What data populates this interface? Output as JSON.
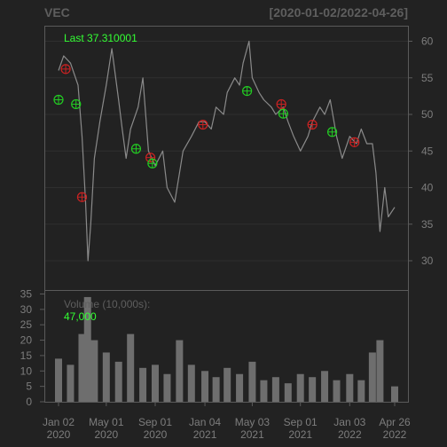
{
  "chart_data": [
    {
      "type": "line",
      "title": "VEC",
      "date_range": "[2020-01-02/2022-04-26]",
      "annotation": "Last 37.310001",
      "last_value": 37.310001,
      "ylim": [
        26,
        62
      ],
      "y_ticks": [
        "30",
        "35",
        "40",
        "45",
        "50",
        "55",
        "60"
      ],
      "x_ticks": [
        {
          "line1": "Jan 02",
          "line2": "2020"
        },
        {
          "line1": "May 01",
          "line2": "2020"
        },
        {
          "line1": "Sep 01",
          "line2": "2020"
        },
        {
          "line1": "Jan 04",
          "line2": "2021"
        },
        {
          "line1": "May 03",
          "line2": "2021"
        },
        {
          "line1": "Sep 01",
          "line2": "2021"
        },
        {
          "line1": "Jan 03",
          "line2": "2022"
        },
        {
          "line1": "Apr 26",
          "line2": "2022"
        }
      ],
      "grid": true,
      "colors": {
        "background": "#222222",
        "price": "#8a8a8a",
        "buy": "#22cc22",
        "sell": "#cc2222",
        "text": "#33ff33"
      },
      "series": [
        {
          "x": [
            "2020-01-02",
            "2020-01-15",
            "2020-02-01",
            "2020-02-20",
            "2020-03-01",
            "2020-03-10",
            "2020-03-16",
            "2020-03-23",
            "2020-04-01",
            "2020-04-15",
            "2020-05-01",
            "2020-05-15",
            "2020-06-01",
            "2020-06-10",
            "2020-06-20",
            "2020-07-01",
            "2020-07-20",
            "2020-08-01",
            "2020-08-15",
            "2020-09-01",
            "2020-09-20",
            "2020-10-01",
            "2020-10-20",
            "2020-11-01",
            "2020-11-10",
            "2020-12-01",
            "2020-12-20",
            "2021-01-04",
            "2021-01-20",
            "2021-02-01",
            "2021-02-20",
            "2021-03-01",
            "2021-03-20",
            "2021-04-01",
            "2021-04-10",
            "2021-04-25",
            "2021-05-03",
            "2021-05-20",
            "2021-06-01",
            "2021-06-20",
            "2021-07-01",
            "2021-07-20",
            "2021-08-01",
            "2021-08-15",
            "2021-09-01",
            "2021-09-20",
            "2021-10-01",
            "2021-10-20",
            "2021-11-01",
            "2021-11-15",
            "2021-12-01",
            "2021-12-15",
            "2022-01-03",
            "2022-01-20",
            "2022-02-01",
            "2022-02-15",
            "2022-03-01",
            "2022-03-10",
            "2022-03-20",
            "2022-04-01",
            "2022-04-10",
            "2022-04-26"
          ],
          "values": [
            56,
            58,
            57,
            54,
            47,
            38,
            30,
            35,
            44,
            49,
            54,
            59,
            52,
            48,
            44,
            48,
            51,
            55,
            45,
            43,
            45,
            40,
            38,
            42,
            45,
            47,
            49,
            49,
            48,
            51,
            50,
            53,
            55,
            54,
            57,
            60,
            55,
            53,
            52,
            51,
            50,
            51,
            49,
            47,
            45,
            47,
            49,
            51,
            50,
            52,
            47,
            44,
            47,
            46,
            48,
            46,
            46,
            42,
            34,
            40,
            36,
            37.31
          ]
        }
      ],
      "signals": {
        "buy": [
          {
            "x": "2020-01-02",
            "y": 52
          },
          {
            "x": "2020-02-15",
            "y": 51.4
          },
          {
            "x": "2020-07-15",
            "y": 45.3
          },
          {
            "x": "2020-08-25",
            "y": 43.3
          },
          {
            "x": "2021-04-20",
            "y": 53.2
          },
          {
            "x": "2021-07-20",
            "y": 50.1
          },
          {
            "x": "2021-11-20",
            "y": 47.6
          }
        ],
        "sell": [
          {
            "x": "2020-01-20",
            "y": 56.2
          },
          {
            "x": "2020-03-01",
            "y": 38.7
          },
          {
            "x": "2020-08-20",
            "y": 44.1
          },
          {
            "x": "2020-12-30",
            "y": 48.6
          },
          {
            "x": "2021-07-15",
            "y": 51.4
          },
          {
            "x": "2021-10-01",
            "y": 48.6
          },
          {
            "x": "2022-01-15",
            "y": 46.2
          }
        ]
      }
    },
    {
      "type": "bar",
      "label": "Volume (10,000s):",
      "last_value": "47,000",
      "ylim": [
        0,
        36
      ],
      "y_ticks": [
        "0",
        "5",
        "10",
        "15",
        "20",
        "25",
        "30",
        "35"
      ],
      "x": [
        "2020-01-02",
        "2020-02-01",
        "2020-03-01",
        "2020-03-15",
        "2020-04-01",
        "2020-05-01",
        "2020-06-01",
        "2020-07-01",
        "2020-08-01",
        "2020-09-01",
        "2020-10-01",
        "2020-11-01",
        "2020-12-01",
        "2021-01-04",
        "2021-02-01",
        "2021-03-01",
        "2021-04-01",
        "2021-05-03",
        "2021-06-01",
        "2021-07-01",
        "2021-08-01",
        "2021-09-01",
        "2021-10-01",
        "2021-11-01",
        "2021-12-01",
        "2022-01-03",
        "2022-02-01",
        "2022-03-01",
        "2022-03-20",
        "2022-04-26"
      ],
      "values": [
        14,
        12,
        22,
        34,
        20,
        16,
        13,
        22,
        11,
        12,
        9,
        20,
        12,
        10,
        8,
        11,
        9,
        13,
        7,
        8,
        6,
        9,
        8,
        10,
        7,
        9,
        7,
        16,
        20,
        5
      ]
    }
  ]
}
